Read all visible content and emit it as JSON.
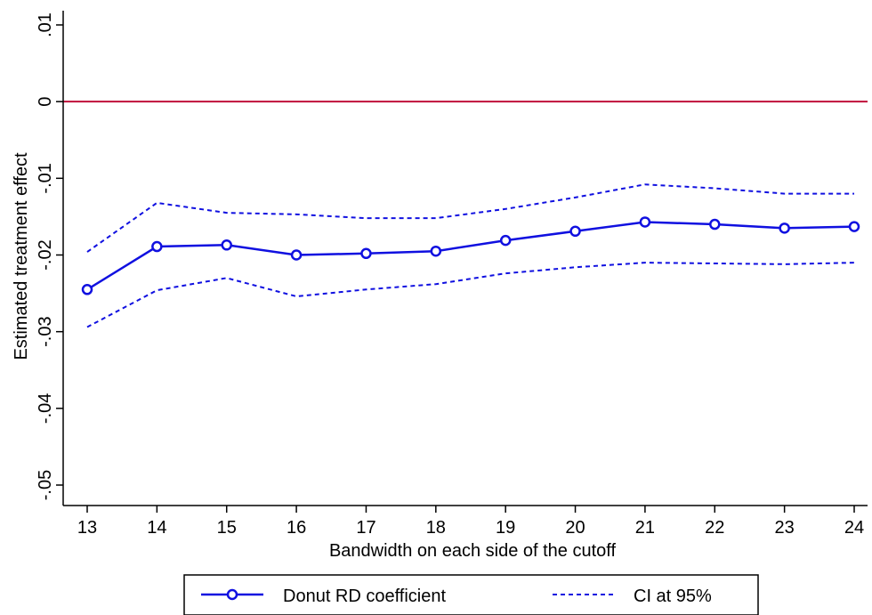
{
  "colors": {
    "series": "#1010e0",
    "reference_line": "#c0103a",
    "axis": "#000000"
  },
  "chart_data": {
    "type": "line",
    "title": "",
    "xlabel": "Bandwidth on each side of the cutoff",
    "ylabel": "Estimated treatment effect",
    "x": [
      13,
      14,
      15,
      16,
      17,
      18,
      19,
      20,
      21,
      22,
      23,
      24
    ],
    "xlim": [
      13,
      24
    ],
    "ylim": [
      -0.05,
      0.01
    ],
    "xticks": [
      "13",
      "14",
      "15",
      "16",
      "17",
      "18",
      "19",
      "20",
      "21",
      "22",
      "23",
      "24"
    ],
    "yticks": [
      {
        "value": 0.01,
        "label": ".01"
      },
      {
        "value": 0,
        "label": "0"
      },
      {
        "value": -0.01,
        "label": "-.01"
      },
      {
        "value": -0.02,
        "label": "-.02"
      },
      {
        "value": -0.03,
        "label": "-.03"
      },
      {
        "value": -0.04,
        "label": "-.04"
      },
      {
        "value": -0.05,
        "label": "-.05"
      }
    ],
    "reference_line": {
      "y": 0
    },
    "grid": false,
    "legend_position": "bottom",
    "series": [
      {
        "name": "Donut RD coefficient",
        "style": "solid-circle",
        "values": [
          -0.0245,
          -0.0189,
          -0.0187,
          -0.02,
          -0.0198,
          -0.0195,
          -0.0181,
          -0.0169,
          -0.0157,
          -0.016,
          -0.0165,
          -0.0163
        ]
      },
      {
        "name": "CI at 95%",
        "style": "dashed",
        "values": [
          -0.0196,
          -0.0132,
          -0.0145,
          -0.0147,
          -0.0152,
          -0.0152,
          -0.014,
          -0.0125,
          -0.0108,
          -0.0113,
          -0.012,
          -0.012
        ]
      },
      {
        "name": "",
        "style": "dashed",
        "values": [
          -0.0294,
          -0.0246,
          -0.023,
          -0.0254,
          -0.0245,
          -0.0238,
          -0.0224,
          -0.0216,
          -0.021,
          -0.0211,
          -0.0212,
          -0.021
        ]
      }
    ],
    "legend": [
      {
        "label": "Donut RD coefficient",
        "style": "solid-circle"
      },
      {
        "label": "CI at 95%",
        "style": "dashed"
      }
    ]
  }
}
